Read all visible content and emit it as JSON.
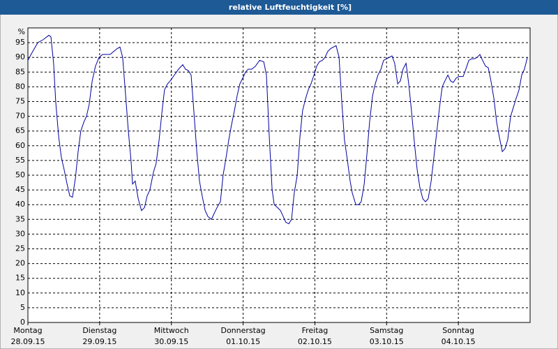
{
  "chart_data": {
    "type": "line",
    "title": "relative Luftfeuchtigkeit [%]",
    "ylabel": "%",
    "xlim": [
      0,
      168
    ],
    "ylim": [
      0,
      100
    ],
    "xticks": [
      {
        "value": 0,
        "label": "Montag",
        "sublabel": "28.09.15"
      },
      {
        "value": 24,
        "label": "Dienstag",
        "sublabel": "29.09.15"
      },
      {
        "value": 48,
        "label": "Mittwoch",
        "sublabel": "30.09.15"
      },
      {
        "value": 72,
        "label": "Donnerstag",
        "sublabel": "01.10.15"
      },
      {
        "value": 96,
        "label": "Freitag",
        "sublabel": "02.10.15"
      },
      {
        "value": 120,
        "label": "Samstag",
        "sublabel": "03.10.15"
      },
      {
        "value": 144,
        "label": "Sonntag",
        "sublabel": "04.10.15"
      }
    ],
    "yticks": [
      0,
      5,
      10,
      15,
      20,
      25,
      30,
      35,
      40,
      45,
      50,
      55,
      60,
      65,
      70,
      75,
      80,
      85,
      90,
      95
    ],
    "grid": true,
    "series": [
      {
        "color": "#0000a0",
        "x": [
          0,
          1.6,
          3.3,
          5.1,
          7,
          7.7,
          8.6,
          9.3,
          10.3,
          11.2,
          12.1,
          13.1,
          14,
          14.9,
          15.9,
          16.8,
          17.7,
          18.7,
          19.6,
          20.5,
          21.5,
          22.6,
          23.8,
          25,
          26.1,
          27.5,
          28.7,
          29.9,
          30.8,
          31.7,
          32.7,
          33.6,
          34.5,
          35,
          35.9,
          36.9,
          38,
          39,
          39.9,
          40.8,
          42,
          42.9,
          43.9,
          44.8,
          45.7,
          46.7,
          47.6,
          49,
          50.4,
          51.8,
          52.7,
          53.7,
          54.6,
          55.5,
          56.5,
          57.4,
          58.3,
          59.3,
          60.2,
          61.4,
          62.3,
          63.5,
          64.4,
          65.3,
          66.3,
          67.2,
          68.1,
          69.1,
          70,
          70.9,
          71.9,
          72.8,
          73.7,
          74.9,
          76.1,
          77.5,
          78.9,
          79.8,
          80.7,
          81.7,
          82.4,
          83.5,
          84.5,
          85.4,
          86.3,
          87.3,
          88.2,
          89.1,
          90.1,
          91,
          91.9,
          92.9,
          93.8,
          94.7,
          95.7,
          96.6,
          97.5,
          98.5,
          99.4,
          100.3,
          101.3,
          102.2,
          103.1,
          104.1,
          105,
          105.9,
          106.9,
          107.8,
          108.5,
          109.7,
          110.6,
          111.5,
          112.5,
          113.4,
          114.3,
          115.3,
          116.2,
          117.1,
          118.1,
          119,
          119.9,
          120.9,
          121.8,
          122.7,
          123.7,
          124.6,
          125.5,
          126.5,
          127.4,
          128.3,
          129.3,
          130.2,
          131.1,
          132.1,
          133,
          133.9,
          134.9,
          135.8,
          136.7,
          137.7,
          138.6,
          139.5,
          140.5,
          141.4,
          142.3,
          143.3,
          144.2,
          145.6,
          146.5,
          147.5,
          148.4,
          149.3,
          150.3,
          151.2,
          152.1,
          153.1,
          154,
          154.9,
          155.9,
          156.8,
          157.7,
          158.7,
          159.6,
          160.5,
          161.5,
          162.4,
          163.3,
          164.3,
          165.2,
          166.1,
          167.1
        ],
        "values": [
          89,
          92,
          95,
          96,
          97.5,
          97,
          88,
          75,
          63,
          56,
          52,
          47,
          43,
          42.5,
          49,
          58,
          65,
          68,
          70,
          74,
          82,
          87,
          90,
          91,
          91,
          91,
          92,
          93,
          93.5,
          90,
          77,
          65,
          55,
          47,
          48,
          42,
          38,
          39,
          43,
          45,
          51,
          54,
          62,
          71,
          79,
          81,
          82,
          84,
          86,
          87.5,
          86,
          85.5,
          84,
          72,
          58,
          48,
          43,
          38,
          36,
          35,
          37,
          39.5,
          41,
          50,
          56,
          62,
          67,
          72,
          77,
          81,
          83,
          85,
          86,
          86,
          87,
          89,
          88.5,
          84,
          64,
          45,
          40,
          39,
          38,
          36,
          34,
          33.5,
          35,
          44,
          50,
          63,
          72,
          76,
          79,
          81,
          84,
          87,
          88.5,
          89,
          90,
          92,
          93,
          93.5,
          94,
          90,
          75,
          62,
          55,
          48,
          44,
          40,
          40,
          41,
          47,
          57,
          68,
          77,
          81,
          84,
          86,
          89,
          89.5,
          90,
          90.5,
          88,
          81,
          82,
          86,
          88,
          81,
          72,
          61,
          52,
          46,
          42,
          41,
          42,
          48,
          56,
          64,
          73,
          80,
          82,
          84,
          82,
          81.5,
          83,
          83.5,
          83.5,
          86,
          89,
          89.5,
          89.5,
          90,
          91,
          89,
          87,
          86.5,
          82,
          76,
          68,
          63,
          58,
          59,
          62,
          70,
          73,
          76,
          79,
          84,
          86,
          90
        ]
      }
    ]
  }
}
